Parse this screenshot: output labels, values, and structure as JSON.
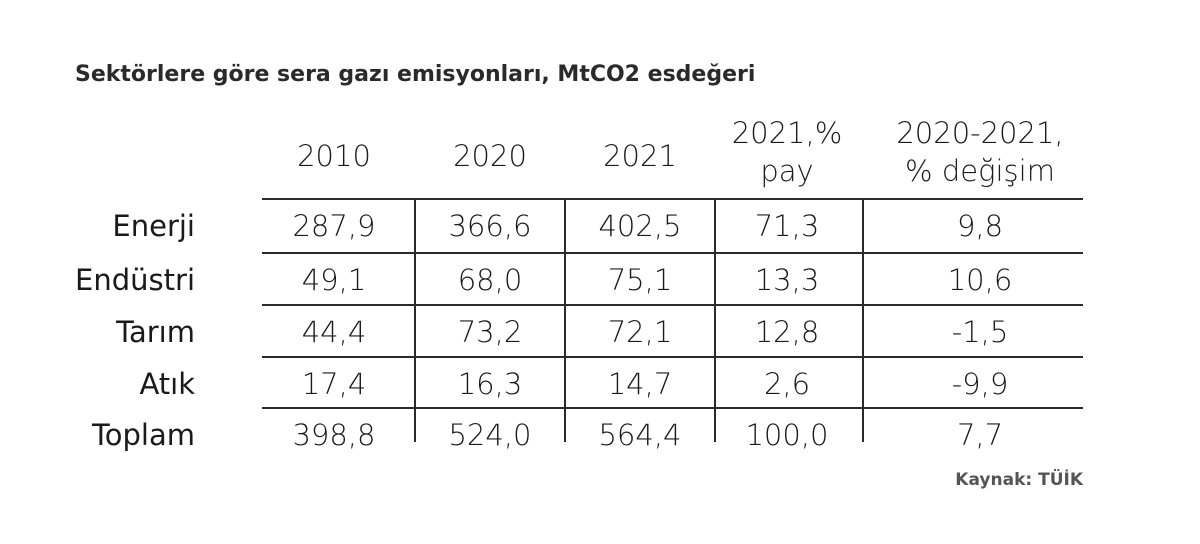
{
  "chart_data": {
    "type": "table",
    "title": "Sektörlere göre sera gazı emisyonları, MtCO2 esdeğeri",
    "columns": [
      "2010",
      "2020",
      "2021",
      "2021,%\npay",
      "2020-2021,\n% değişim"
    ],
    "column_lines": [
      [
        "2010"
      ],
      [
        "2020"
      ],
      [
        "2021"
      ],
      [
        "2021,%",
        "pay"
      ],
      [
        "2020-2021,",
        "% değişim"
      ]
    ],
    "rows": [
      {
        "label": "Enerji",
        "values": [
          "287,9",
          "366,6",
          "402,5",
          "71,3",
          "9,8"
        ]
      },
      {
        "label": "Endüstri",
        "values": [
          "49,1",
          "68,0",
          "75,1",
          "13,3",
          "10,6"
        ]
      },
      {
        "label": "Tarım",
        "values": [
          "44,4",
          "73,2",
          "72,1",
          "12,8",
          "-1,5"
        ]
      },
      {
        "label": "Atık",
        "values": [
          "17,4",
          "16,3",
          "14,7",
          "2,6",
          "-9,9"
        ]
      },
      {
        "label": "Toplam",
        "values": [
          "398,8",
          "524,0",
          "564,4",
          "100,0",
          "7,7"
        ]
      }
    ],
    "source": "Kaynak: TÜİK"
  }
}
